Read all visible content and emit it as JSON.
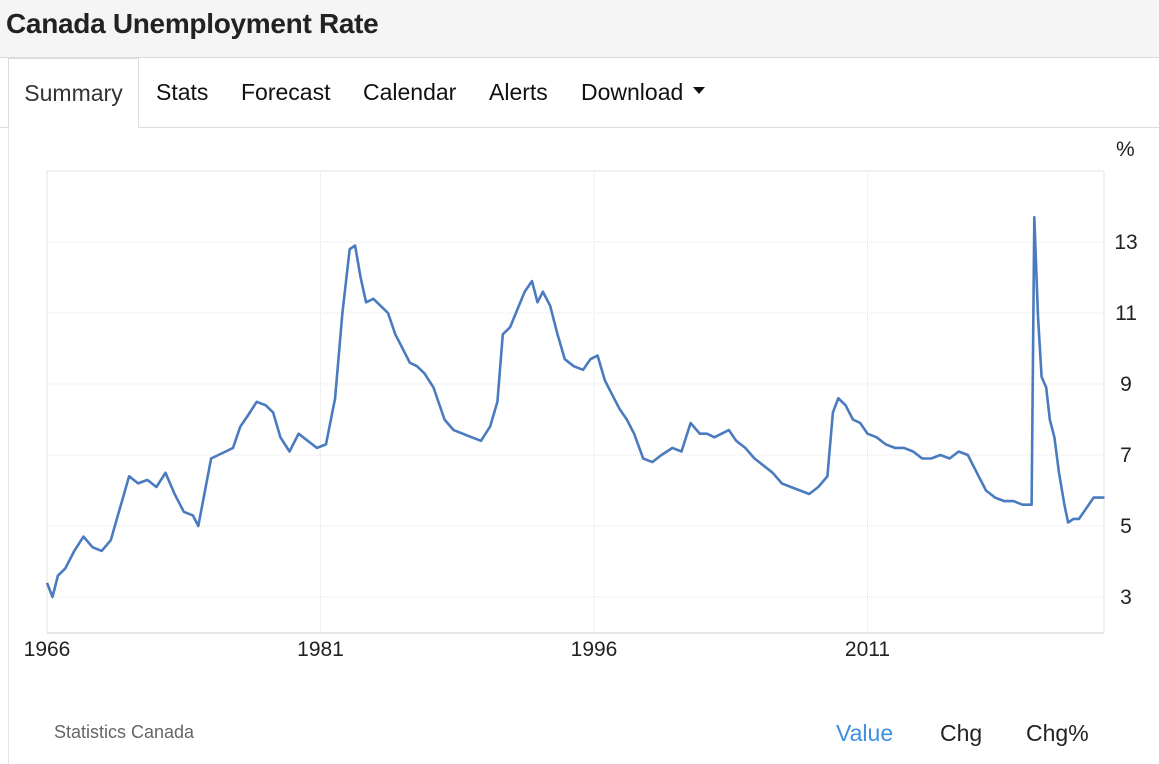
{
  "header": {
    "title": "Canada Unemployment Rate"
  },
  "tabs": [
    {
      "label": "Summary",
      "active": true
    },
    {
      "label": "Stats"
    },
    {
      "label": "Forecast"
    },
    {
      "label": "Calendar"
    },
    {
      "label": "Alerts"
    },
    {
      "label": "Download",
      "dropdown": true
    }
  ],
  "footer": {
    "source": "Statistics Canada",
    "toggles": [
      "Value",
      "Chg",
      "Chg%"
    ],
    "active_toggle": "Value"
  },
  "colors": {
    "line": "#4a7bbf",
    "accent": "#3d8fe0",
    "grid": "#e3e3e3"
  },
  "chart_data": {
    "type": "line",
    "unit_label": "%",
    "x_ticks": [
      "1966",
      "1981",
      "1996",
      "2011"
    ],
    "y_ticks": [
      "3",
      "5",
      "7",
      "9",
      "11",
      "13"
    ],
    "xlim": [
      1966,
      2024
    ],
    "ylim": [
      2,
      15
    ],
    "grid": true,
    "y_axis_side": "right",
    "series": [
      {
        "x": [
          1966.0,
          1966.3,
          1966.6,
          1967.0,
          1967.5,
          1968.0,
          1968.5,
          1969.0,
          1969.5,
          1970.0,
          1970.5,
          1971.0,
          1971.5,
          1972.0,
          1972.5,
          1973.0,
          1973.5,
          1974.0,
          1974.3,
          1975.0,
          1975.4,
          1975.8,
          1976.2,
          1976.6,
          1977.0,
          1977.5,
          1978.0,
          1978.4,
          1978.8,
          1979.3,
          1979.8,
          1980.3,
          1980.8,
          1981.3,
          1981.8,
          1982.2,
          1982.6,
          1982.9,
          1983.2,
          1983.5,
          1983.9,
          1984.3,
          1984.7,
          1985.1,
          1985.5,
          1985.9,
          1986.3,
          1986.7,
          1987.2,
          1987.8,
          1988.3,
          1988.8,
          1989.3,
          1989.8,
          1990.3,
          1990.7,
          1991.0,
          1991.4,
          1991.8,
          1992.2,
          1992.6,
          1992.9,
          1993.2,
          1993.6,
          1994.0,
          1994.4,
          1994.9,
          1995.4,
          1995.8,
          1996.2,
          1996.6,
          1997.0,
          1997.4,
          1997.8,
          1998.2,
          1998.7,
          1999.2,
          1999.7,
          2000.3,
          2000.8,
          2001.3,
          2001.8,
          2002.2,
          2002.6,
          2003.0,
          2003.4,
          2003.8,
          2004.3,
          2004.8,
          2005.3,
          2005.8,
          2006.3,
          2006.8,
          2007.3,
          2007.8,
          2008.3,
          2008.8,
          2009.1,
          2009.4,
          2009.8,
          2010.2,
          2010.6,
          2011.0,
          2011.5,
          2012.0,
          2012.5,
          2013.0,
          2013.5,
          2014.0,
          2014.5,
          2015.0,
          2015.5,
          2016.0,
          2016.5,
          2017.0,
          2017.5,
          2018.0,
          2018.5,
          2019.0,
          2019.5,
          2020.0,
          2020.15,
          2020.35,
          2020.55,
          2020.8,
          2021.0,
          2021.25,
          2021.5,
          2021.8,
          2022.0,
          2022.3,
          2022.6,
          2023.0,
          2023.4,
          2023.8,
          2024.0
        ],
        "y": [
          3.4,
          3.0,
          3.6,
          3.8,
          4.3,
          4.7,
          4.4,
          4.3,
          4.6,
          5.5,
          6.4,
          6.2,
          6.3,
          6.1,
          6.5,
          5.9,
          5.4,
          5.3,
          5.0,
          6.9,
          7.0,
          7.1,
          7.2,
          7.8,
          8.1,
          8.5,
          8.4,
          8.2,
          7.5,
          7.1,
          7.6,
          7.4,
          7.2,
          7.3,
          8.6,
          11.0,
          12.8,
          12.9,
          12.0,
          11.3,
          11.4,
          11.2,
          11.0,
          10.4,
          10.0,
          9.6,
          9.5,
          9.3,
          8.9,
          8.0,
          7.7,
          7.6,
          7.5,
          7.4,
          7.8,
          8.5,
          10.4,
          10.6,
          11.1,
          11.6,
          11.9,
          11.3,
          11.6,
          11.2,
          10.4,
          9.7,
          9.5,
          9.4,
          9.7,
          9.8,
          9.1,
          8.7,
          8.3,
          8.0,
          7.6,
          6.9,
          6.8,
          7.0,
          7.2,
          7.1,
          7.9,
          7.6,
          7.6,
          7.5,
          7.6,
          7.7,
          7.4,
          7.2,
          6.9,
          6.7,
          6.5,
          6.2,
          6.1,
          6.0,
          5.9,
          6.1,
          6.4,
          8.2,
          8.6,
          8.4,
          8.0,
          7.9,
          7.6,
          7.5,
          7.3,
          7.2,
          7.2,
          7.1,
          6.9,
          6.9,
          7.0,
          6.9,
          7.1,
          7.0,
          6.5,
          6.0,
          5.8,
          5.7,
          5.7,
          5.6,
          5.6,
          13.7,
          10.9,
          9.2,
          8.9,
          8.0,
          7.5,
          6.5,
          5.6,
          5.1,
          5.2,
          5.2,
          5.5,
          5.8,
          5.8,
          5.8
        ]
      }
    ]
  }
}
